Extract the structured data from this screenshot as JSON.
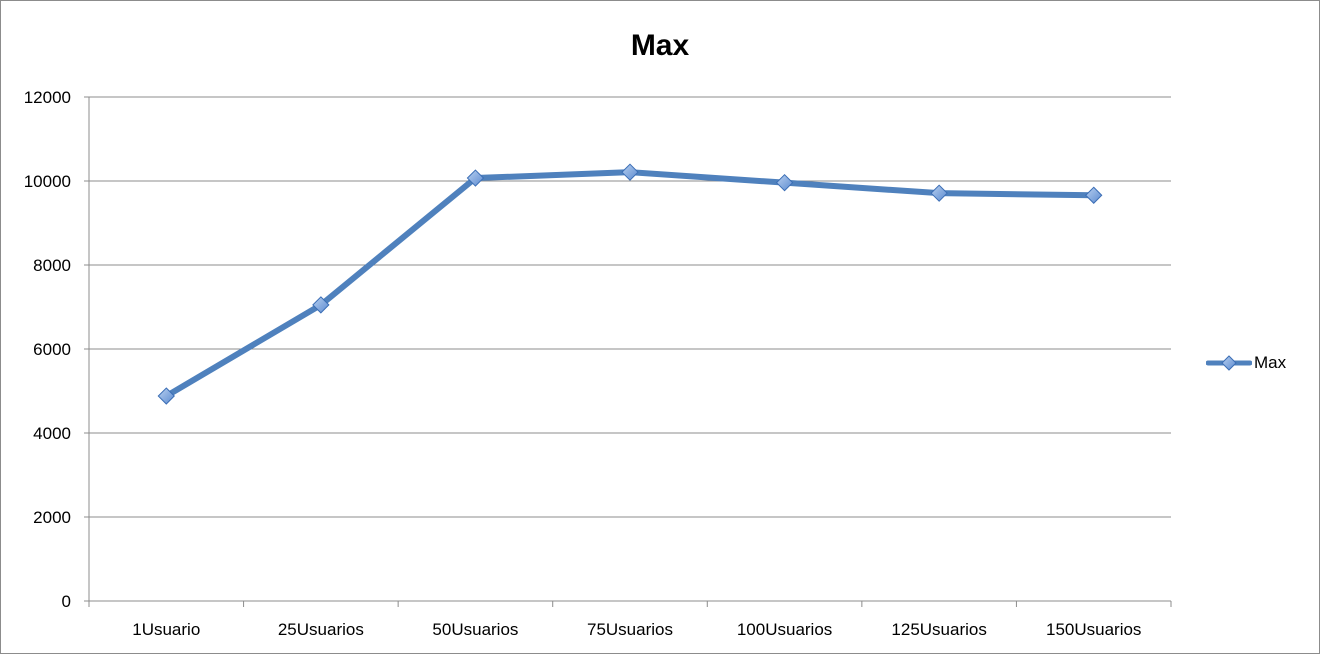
{
  "chart_data": {
    "type": "line",
    "title": "Max",
    "xlabel": "",
    "ylabel": "",
    "categories": [
      "1Usuario",
      "25Usuarios",
      "50Usuarios",
      "75Usuarios",
      "100Usuarios",
      "125Usuarios",
      "150Usuarios"
    ],
    "series": [
      {
        "name": "Max",
        "values": [
          4880,
          7050,
          10070,
          10210,
          9960,
          9710,
          9660
        ],
        "color": "#4f81bd"
      }
    ],
    "ylim": [
      0,
      12000
    ],
    "yticks": [
      0,
      2000,
      4000,
      6000,
      8000,
      10000,
      12000
    ],
    "grid": true,
    "legend_position": "right",
    "marker": "diamond"
  }
}
